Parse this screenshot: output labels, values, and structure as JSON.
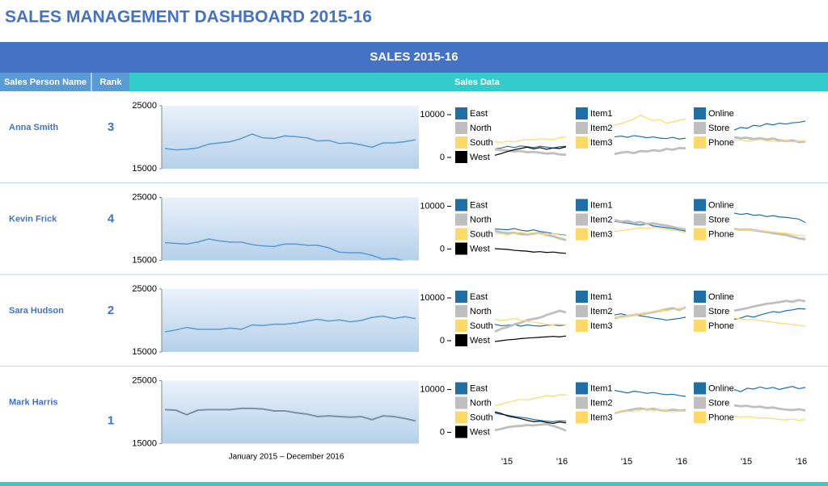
{
  "title": "SALES MANAGEMENT DASHBOARD 2015-16",
  "banner": "SALES 2015-16",
  "columns": [
    "Sales Person Name",
    "Rank",
    "Sales Data"
  ],
  "sales_axis": {
    "ylim": [
      15000,
      25000
    ],
    "yticks": [
      15000,
      25000
    ],
    "color": "#5b9bd5"
  },
  "spark_axis": {
    "ylim": [
      0,
      10000
    ],
    "yticks": [
      0,
      10000
    ]
  },
  "groups": [
    {
      "series": [
        {
          "name": "East",
          "color": "#1f6fa5"
        },
        {
          "name": "North",
          "color": "#bfbfbf"
        },
        {
          "name": "South",
          "color": "#ffd966"
        },
        {
          "name": "West",
          "color": "#000000"
        }
      ]
    },
    {
      "series": [
        {
          "name": "Item1",
          "color": "#1f6fa5"
        },
        {
          "name": "Item2",
          "color": "#bfbfbf"
        },
        {
          "name": "Item3",
          "color": "#ffd966"
        }
      ]
    },
    {
      "series": [
        {
          "name": "Online",
          "color": "#1f6fa5"
        },
        {
          "name": "Store",
          "color": "#bfbfbf"
        },
        {
          "name": "Phone",
          "color": "#ffd966"
        }
      ]
    }
  ],
  "x_labels": [
    "'15",
    "'16"
  ],
  "period": "January 2015  – December 2016",
  "rows": [
    {
      "name": "Anna Smith",
      "rank": 3,
      "sales": [
        18200,
        18000,
        18100,
        18300,
        18900,
        19100,
        19300,
        19800,
        20500,
        19900,
        19800,
        20200,
        20100,
        19900,
        19400,
        19500,
        19000,
        19100,
        18800,
        18400,
        19100,
        19100,
        19300,
        19600
      ],
      "groups": [
        [
          [
            2000,
            2200,
            2600,
            2300,
            2700,
            2500,
            2300,
            2600,
            2400,
            2200,
            2500,
            2600
          ],
          [
            1900,
            1700,
            1600,
            1400,
            1500,
            1200,
            1300,
            1100,
            900,
            1000,
            700,
            600
          ],
          [
            3700,
            3500,
            3800,
            3600,
            4000,
            4200,
            4100,
            4400,
            4300,
            4200,
            4600,
            4800
          ],
          [
            500,
            900,
            1400,
            1800,
            2100,
            2400,
            2000,
            2300,
            1900,
            2200,
            2100,
            2500
          ]
        ],
        [
          [
            4800,
            5000,
            4700,
            5100,
            4900,
            4600,
            4800,
            4500,
            4400,
            4700,
            4300,
            4500
          ],
          [
            800,
            1100,
            1300,
            1000,
            1500,
            1400,
            1700,
            1500,
            2000,
            1800,
            2200,
            2100
          ],
          [
            7600,
            7900,
            8400,
            9000,
            9900,
            9200,
            8600,
            8900,
            8000,
            8300,
            8700,
            9000
          ]
        ],
        [
          [
            6400,
            7000,
            6800,
            7500,
            7300,
            7900,
            7600,
            8000,
            7800,
            8100,
            8200,
            8500
          ],
          [
            4700,
            4500,
            4600,
            4300,
            4500,
            4200,
            4400,
            4000,
            3800,
            4000,
            3600,
            3700
          ],
          [
            4000,
            4100,
            3800,
            4000,
            4200,
            3900,
            3800,
            3700,
            3900,
            3600,
            3800,
            3900
          ]
        ]
      ]
    },
    {
      "name": "Kevin Frick",
      "rank": 4,
      "sales": [
        17800,
        17700,
        17600,
        17900,
        18400,
        18100,
        17900,
        17900,
        17500,
        17300,
        17200,
        17600,
        17600,
        17400,
        17400,
        17000,
        16300,
        16200,
        16200,
        15800,
        15200,
        15300,
        14900,
        14800
      ],
      "groups": [
        [
          [
            4700,
            4600,
            4500,
            4800,
            4400,
            4200,
            4500,
            4100,
            3900,
            3600,
            3400,
            3200
          ],
          [
            4200,
            3900,
            3700,
            3800,
            3500,
            3400,
            3600,
            3800,
            3300,
            3000,
            2500,
            2100
          ],
          [
            3500,
            3600,
            3300,
            3700,
            3900,
            3600,
            3800,
            3500,
            3400,
            3600,
            3300,
            3100
          ],
          [
            100,
            0,
            -100,
            -300,
            -400,
            -500,
            -700,
            -600,
            -800,
            -700,
            -900,
            -1000
          ]
        ],
        [
          [
            6500,
            6200,
            6100,
            5800,
            5600,
            5900,
            5400,
            5200,
            5000,
            4800,
            4500,
            4200
          ],
          [
            6800,
            6400,
            6600,
            6100,
            6300,
            5900,
            6000,
            5700,
            5500,
            5200,
            4800,
            4600
          ],
          [
            4100,
            4300,
            4500,
            4700,
            5000,
            4800,
            5100,
            4900,
            4600,
            4400,
            4200,
            3800
          ]
        ],
        [
          [
            8400,
            8100,
            8300,
            7900,
            8000,
            7600,
            7800,
            7500,
            7400,
            7200,
            7000,
            6200
          ],
          [
            4700,
            4500,
            4600,
            4400,
            4200,
            4000,
            3700,
            3500,
            3300,
            2900,
            2500,
            2300
          ],
          [
            4500,
            4400,
            4600,
            4300,
            4400,
            4100,
            4000,
            3800,
            3700,
            3400,
            3200,
            3100
          ]
        ]
      ]
    },
    {
      "name": "Sara Hudson",
      "rank": 2,
      "sales": [
        18200,
        18500,
        18900,
        18600,
        18600,
        18600,
        18800,
        18600,
        19300,
        19200,
        19400,
        19400,
        19600,
        19900,
        20200,
        19900,
        20100,
        19800,
        20000,
        20500,
        20700,
        20300,
        20600,
        20300
      ],
      "groups": [
        [
          [
            3800,
            3500,
            3600,
            3800,
            3400,
            3700,
            3500,
            3400,
            3600,
            3700,
            3500,
            3700
          ],
          [
            2100,
            2800,
            3200,
            3800,
            4200,
            4800,
            5100,
            5400,
            6000,
            6500,
            7000,
            6600
          ],
          [
            5000,
            4700,
            4900,
            5200,
            4800,
            4500,
            4300,
            4100,
            3800,
            3700,
            3900,
            3600
          ],
          [
            -200,
            0,
            200,
            300,
            500,
            600,
            700,
            800,
            900,
            1000,
            900,
            1100
          ]
        ],
        [
          [
            6000,
            6300,
            5900,
            6100,
            5800,
            5600,
            5300,
            5100,
            4800,
            5000,
            5200,
            5500
          ],
          [
            5300,
            5600,
            5800,
            6000,
            6200,
            6400,
            6700,
            7000,
            7300,
            7600,
            7200,
            7800
          ],
          [
            5500,
            5400,
            5800,
            6000,
            6300,
            6500,
            6800,
            7100,
            7000,
            7300,
            7500,
            7700
          ]
        ],
        [
          [
            5000,
            5300,
            5800,
            5500,
            6000,
            6400,
            6800,
            6600,
            7000,
            7200,
            7500,
            7400
          ],
          [
            7000,
            7300,
            7600,
            8000,
            8300,
            8600,
            8800,
            9000,
            9300,
            9100,
            9500,
            9200
          ],
          [
            5300,
            5100,
            4900,
            5000,
            4700,
            4500,
            4300,
            4100,
            4000,
            3800,
            3600,
            3400
          ]
        ]
      ]
    },
    {
      "name": "Mark Harris",
      "rank": 1,
      "sales": [
        20400,
        20300,
        19600,
        20300,
        20400,
        20400,
        20400,
        20600,
        20600,
        20500,
        20200,
        20200,
        19900,
        19700,
        19300,
        19400,
        19300,
        19200,
        19300,
        18800,
        19400,
        19300,
        19000,
        18600
      ],
      "groups": [
        [
          [
            4500,
            4200,
            4000,
            3700,
            3500,
            3300,
            3000,
            2800,
            2600,
            2500,
            2700,
            2600
          ],
          [
            500,
            800,
            1200,
            1400,
            1500,
            1700,
            1600,
            1800,
            1900,
            1500,
            1000,
            400
          ],
          [
            6200,
            6600,
            7000,
            7400,
            7700,
            7500,
            7900,
            8200,
            8600,
            8400,
            8800,
            8700
          ],
          [
            4800,
            4400,
            3800,
            3500,
            3200,
            2800,
            2500,
            2600,
            2300,
            2100,
            2400,
            2200
          ]
        ],
        [
          [
            9800,
            9500,
            9200,
            9600,
            9400,
            9100,
            9300,
            9000,
            8800,
            8900,
            8600,
            8400
          ],
          [
            4500,
            4800,
            5100,
            5400,
            5600,
            5300,
            5500,
            5200,
            5000,
            5300,
            5100,
            5200
          ],
          [
            4600,
            4700,
            5000,
            4800,
            5200,
            5400,
            5100,
            5300,
            5000,
            4800,
            5000,
            4900
          ]
        ],
        [
          [
            10000,
            9500,
            10300,
            10100,
            10600,
            10200,
            10500,
            10000,
            10400,
            10700,
            10200,
            10500
          ],
          [
            6300,
            6100,
            6200,
            5900,
            6000,
            5700,
            5800,
            5500,
            5300,
            5200,
            5400,
            5100
          ],
          [
            3800,
            3600,
            3700,
            3500,
            3300,
            3400,
            3200,
            3000,
            2900,
            3100,
            2800,
            3000
          ]
        ]
      ]
    }
  ]
}
